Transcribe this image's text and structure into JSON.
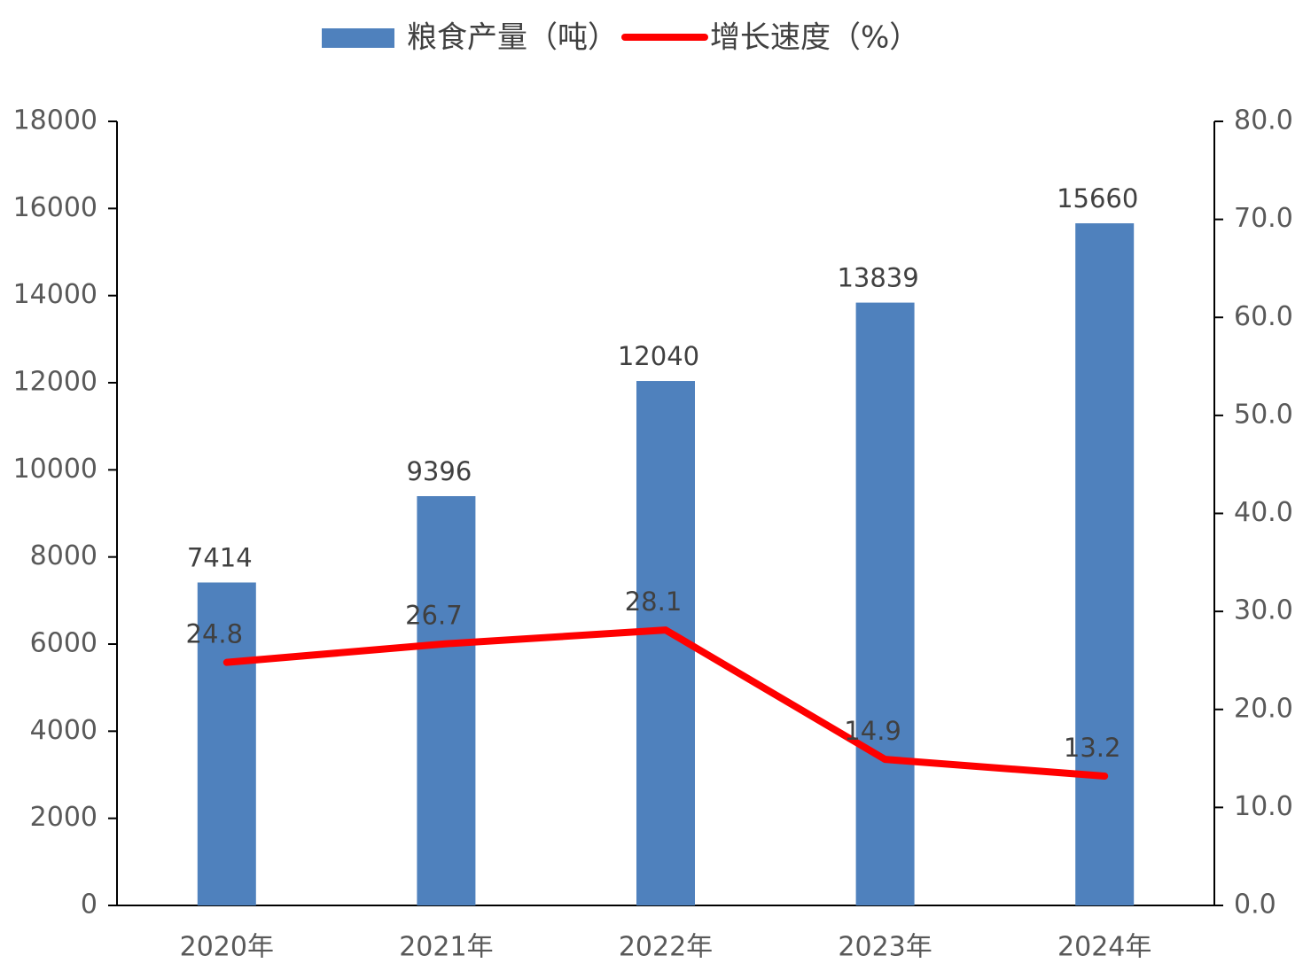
{
  "chart_data": {
    "type": "bar",
    "categories": [
      "2020年",
      "2021年",
      "2022年",
      "2023年",
      "2024年"
    ],
    "series": [
      {
        "name": "粮食产量（吨）",
        "type": "bar",
        "color": "#4f81bd",
        "values": [
          7414,
          9396,
          12040,
          13839,
          15660
        ]
      },
      {
        "name": "增长速度（%）",
        "type": "line",
        "color": "#ff0000",
        "axis": "y2",
        "values": [
          24.8,
          26.7,
          28.1,
          14.9,
          13.2
        ]
      }
    ],
    "ylim": [
      0,
      18000
    ],
    "yticks": [
      0,
      2000,
      4000,
      6000,
      8000,
      10000,
      12000,
      14000,
      16000,
      18000
    ],
    "y2lim": [
      0,
      80
    ],
    "y2ticks": [
      {
        "value": 0,
        "label": "0.0"
      },
      {
        "value": 10,
        "label": "10.0"
      },
      {
        "value": 20,
        "label": "20.0"
      },
      {
        "value": 30,
        "label": "30.0"
      },
      {
        "value": 40,
        "label": "40.0"
      },
      {
        "value": 50,
        "label": "50.0"
      },
      {
        "value": 60,
        "label": "60.0"
      },
      {
        "value": 70,
        "label": "70.0"
      },
      {
        "value": 80,
        "label": "80.0"
      }
    ],
    "legend": "top",
    "grid": false
  }
}
